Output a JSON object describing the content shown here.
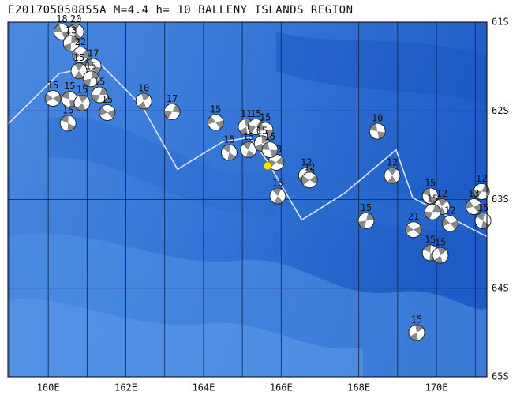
{
  "title": "E201705050855A M=4.4 h= 10 BALLENY ISLANDS REGION",
  "map": {
    "lonlim": [
      158.96,
      171.3
    ],
    "latlim": [
      61,
      65
    ],
    "xticks": [
      {
        "value": 160,
        "label": "160E"
      },
      {
        "value": 162,
        "label": "162E"
      },
      {
        "value": 164,
        "label": "164E"
      },
      {
        "value": 166,
        "label": "166E"
      },
      {
        "value": 168,
        "label": "168E"
      },
      {
        "value": 170,
        "label": "170E"
      }
    ],
    "yticks": [
      {
        "value": 61,
        "label": "61S"
      },
      {
        "value": 62,
        "label": "62S"
      },
      {
        "value": 63,
        "label": "63S"
      },
      {
        "value": 64,
        "label": "64S"
      },
      {
        "value": 65,
        "label": "65S"
      }
    ],
    "grid_lons": [
      159,
      160,
      161,
      162,
      163,
      164,
      165,
      166,
      167,
      168,
      169,
      170,
      171
    ],
    "grid_lats": [
      61,
      62,
      63,
      64,
      65
    ],
    "boundary": [
      [
        158.96,
        62.15
      ],
      [
        160.28,
        61.58
      ],
      [
        161.36,
        61.48
      ],
      [
        162.42,
        61.95
      ],
      [
        163.33,
        62.66
      ],
      [
        164.49,
        62.35
      ],
      [
        165.2,
        62.3
      ],
      [
        165.66,
        62.58
      ],
      [
        166.53,
        63.23
      ],
      [
        167.63,
        62.93
      ],
      [
        168.96,
        62.44
      ],
      [
        169.39,
        62.98
      ],
      [
        171.3,
        63.42
      ]
    ],
    "epicenter": {
      "lon": 165.65,
      "lat": 62.62,
      "color": "#f5e400"
    },
    "events": [
      {
        "lon": 160.35,
        "lat": 61.11,
        "depth": 18
      },
      {
        "lon": 160.71,
        "lat": 61.11,
        "depth": 20
      },
      {
        "lon": 160.59,
        "lat": 61.24,
        "depth": 13
      },
      {
        "lon": 160.83,
        "lat": 61.37,
        "depth": 22
      },
      {
        "lon": 161.16,
        "lat": 61.5,
        "depth": 17
      },
      {
        "lon": 160.79,
        "lat": 61.55,
        "depth": 15
      },
      {
        "lon": 161.1,
        "lat": 61.64,
        "depth": 15
      },
      {
        "lon": 160.12,
        "lat": 61.86,
        "depth": 15
      },
      {
        "lon": 160.55,
        "lat": 61.87,
        "depth": 15
      },
      {
        "lon": 160.87,
        "lat": 61.91,
        "depth": 15
      },
      {
        "lon": 161.32,
        "lat": 61.82,
        "depth": 15
      },
      {
        "lon": 161.52,
        "lat": 62.02,
        "depth": 15
      },
      {
        "lon": 160.51,
        "lat": 62.14,
        "depth": 15
      },
      {
        "lon": 162.46,
        "lat": 61.89,
        "depth": 10
      },
      {
        "lon": 163.19,
        "lat": 62.01,
        "depth": 17
      },
      {
        "lon": 164.31,
        "lat": 62.13,
        "depth": 15
      },
      {
        "lon": 164.66,
        "lat": 62.47,
        "depth": 15
      },
      {
        "lon": 165.1,
        "lat": 62.18,
        "depth": 11
      },
      {
        "lon": 165.35,
        "lat": 62.18,
        "depth": 15
      },
      {
        "lon": 165.59,
        "lat": 62.22,
        "depth": 15
      },
      {
        "lon": 165.16,
        "lat": 62.44,
        "depth": 15
      },
      {
        "lon": 165.51,
        "lat": 62.37,
        "depth": 15
      },
      {
        "lon": 165.87,
        "lat": 62.58,
        "depth": 13
      },
      {
        "lon": 165.71,
        "lat": 62.44,
        "depth": 15
      },
      {
        "lon": 165.91,
        "lat": 62.96,
        "depth": 15
      },
      {
        "lon": 166.65,
        "lat": 62.73,
        "depth": 12
      },
      {
        "lon": 166.73,
        "lat": 62.78,
        "depth": 12
      },
      {
        "lon": 168.48,
        "lat": 62.23,
        "depth": 10
      },
      {
        "lon": 168.86,
        "lat": 62.73,
        "depth": 12
      },
      {
        "lon": 168.19,
        "lat": 63.24,
        "depth": 15
      },
      {
        "lon": 169.41,
        "lat": 63.34,
        "depth": 21
      },
      {
        "lon": 169.84,
        "lat": 62.96,
        "depth": 15
      },
      {
        "lon": 170.14,
        "lat": 63.08,
        "depth": 12
      },
      {
        "lon": 169.9,
        "lat": 63.14,
        "depth": 15
      },
      {
        "lon": 170.35,
        "lat": 63.27,
        "depth": 12
      },
      {
        "lon": 169.84,
        "lat": 63.6,
        "depth": 15
      },
      {
        "lon": 170.1,
        "lat": 63.63,
        "depth": 15
      },
      {
        "lon": 171.16,
        "lat": 62.91,
        "depth": 12
      },
      {
        "lon": 170.96,
        "lat": 63.08,
        "depth": 13
      },
      {
        "lon": 171.2,
        "lat": 63.24,
        "depth": 15
      },
      {
        "lon": 169.49,
        "lat": 64.5,
        "depth": 15
      }
    ]
  }
}
